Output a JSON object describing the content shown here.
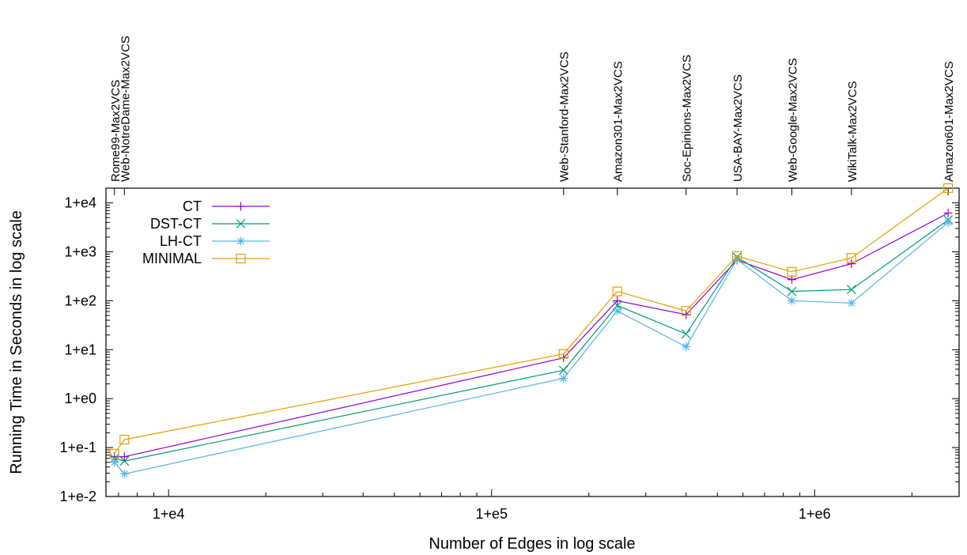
{
  "chart_data": {
    "type": "line",
    "title": "",
    "xlabel": "Number of Edges in log scale",
    "ylabel": "Running Time in Seconds in log scale",
    "x_scale": "log",
    "y_scale": "log",
    "xlim": [
      6400,
      2800000
    ],
    "ylim": [
      0.01,
      20000
    ],
    "x_ticks": [
      {
        "value": 10000,
        "label": "1+e4"
      },
      {
        "value": 100000,
        "label": "1+e5"
      },
      {
        "value": 1000000,
        "label": "1+e6"
      }
    ],
    "y_ticks": [
      {
        "value": 0.01,
        "label": "1+e-2"
      },
      {
        "value": 0.1,
        "label": "1+e-1"
      },
      {
        "value": 1,
        "label": "1+e0"
      },
      {
        "value": 10,
        "label": "1+e1"
      },
      {
        "value": 100,
        "label": "1+e2"
      },
      {
        "value": 1000,
        "label": "1+e3"
      },
      {
        "value": 10000,
        "label": "1+e4"
      }
    ],
    "datasets": [
      {
        "label": "Rome99-Max2VCS",
        "x": 6800
      },
      {
        "label": "Web-NotreDame-Max2VCS",
        "x": 7300
      },
      {
        "label": "Web-Stanford-Max2VCS",
        "x": 167000
      },
      {
        "label": "Amazon301-Max2VCS",
        "x": 245000
      },
      {
        "label": "Soc-Epinions-Max2VCS",
        "x": 400000
      },
      {
        "label": "USA-BAY-Max2VCS",
        "x": 575000
      },
      {
        "label": "Web-Google-Max2VCS",
        "x": 850000
      },
      {
        "label": "WikiTalk-Max2VCS",
        "x": 1300000
      },
      {
        "label": "Amazon601-Max2VCS",
        "x": 2590000
      }
    ],
    "x": [
      6800,
      7300,
      167000,
      245000,
      400000,
      575000,
      850000,
      1300000,
      2590000
    ],
    "series": [
      {
        "name": "CT",
        "color": "#9400d3",
        "marker": "plus",
        "values": [
          0.065,
          0.065,
          6.8,
          100,
          52,
          680,
          270,
          570,
          6200
        ]
      },
      {
        "name": "DST-CT",
        "color": "#009e73",
        "marker": "cross",
        "values": [
          0.06,
          0.053,
          3.8,
          80,
          21,
          780,
          155,
          170,
          4500
        ]
      },
      {
        "name": "LH-CT",
        "color": "#56b4e9",
        "marker": "star",
        "values": [
          0.05,
          0.029,
          2.6,
          62,
          11.5,
          700,
          100,
          90,
          4000
        ]
      },
      {
        "name": "MINIMAL",
        "color": "#e69f00",
        "marker": "square",
        "values": [
          0.075,
          0.145,
          8.2,
          155,
          62,
          820,
          390,
          750,
          20000
        ]
      }
    ],
    "grid": false,
    "legend_position": "top-left"
  }
}
